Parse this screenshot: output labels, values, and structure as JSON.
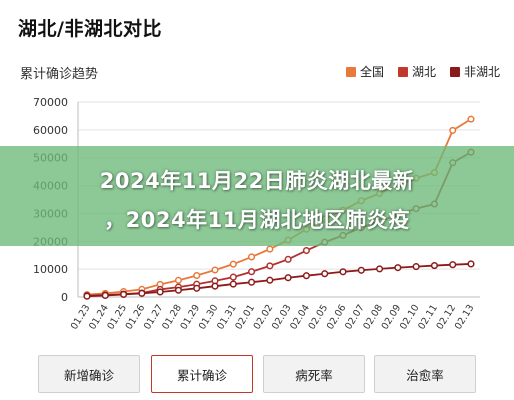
{
  "page_title": "湖北/非湖北对比",
  "banner": {
    "line1": "2024年11月22日肺炎湖北最新",
    "line2": "，2024年11月湖北地区肺炎疫"
  },
  "tabs": [
    {
      "label": "新增确诊",
      "active": false
    },
    {
      "label": "累计确诊",
      "active": true
    },
    {
      "label": "病死率",
      "active": false
    },
    {
      "label": "治愈率",
      "active": false
    }
  ],
  "colors": {
    "national": "#e8793a",
    "hubei": "#c0392b",
    "non_hubei": "#8b1a1a",
    "hubei_line": "#b2302e",
    "active_tab_border": "#c0392b"
  },
  "chart_data": {
    "type": "line",
    "title": "累计确诊趋势",
    "xlabel": "",
    "ylabel": "",
    "ylim": [
      0,
      70000
    ],
    "yticks": [
      "0",
      "10000",
      "20000",
      "30000",
      "40000",
      "50000",
      "60000",
      "70000"
    ],
    "grid": true,
    "legend_position": "top-right",
    "categories": [
      "01.23",
      "01.24",
      "01.25",
      "01.26",
      "01.27",
      "01.28",
      "01.29",
      "01.30",
      "01.31",
      "02.01",
      "02.02",
      "02.03",
      "02.04",
      "02.05",
      "02.06",
      "02.07",
      "02.08",
      "02.09",
      "02.10",
      "02.11",
      "02.12",
      "02.13"
    ],
    "series": [
      {
        "name": "全国",
        "color": "#e8793a",
        "values": [
          830,
          1287,
          1975,
          2744,
          4515,
          5974,
          7711,
          9692,
          11791,
          14380,
          17205,
          20438,
          24324,
          28018,
          31161,
          34546,
          37198,
          40171,
          42638,
          44653,
          59804,
          63851
        ]
      },
      {
        "name": "湖北",
        "color": "#b2302e",
        "values": [
          549,
          729,
          1052,
          1423,
          2714,
          3554,
          4586,
          5806,
          7153,
          9074,
          11177,
          13522,
          16678,
          19665,
          22112,
          24953,
          27100,
          29631,
          31728,
          33366,
          48206,
          51986
        ]
      },
      {
        "name": "非湖北",
        "color": "#8b1a1a",
        "values": [
          281,
          558,
          923,
          1321,
          1801,
          2420,
          3125,
          3886,
          4638,
          5306,
          6028,
          6916,
          7646,
          8353,
          9049,
          9593,
          10098,
          10540,
          10910,
          11287,
          11598,
          11865
        ]
      }
    ]
  }
}
